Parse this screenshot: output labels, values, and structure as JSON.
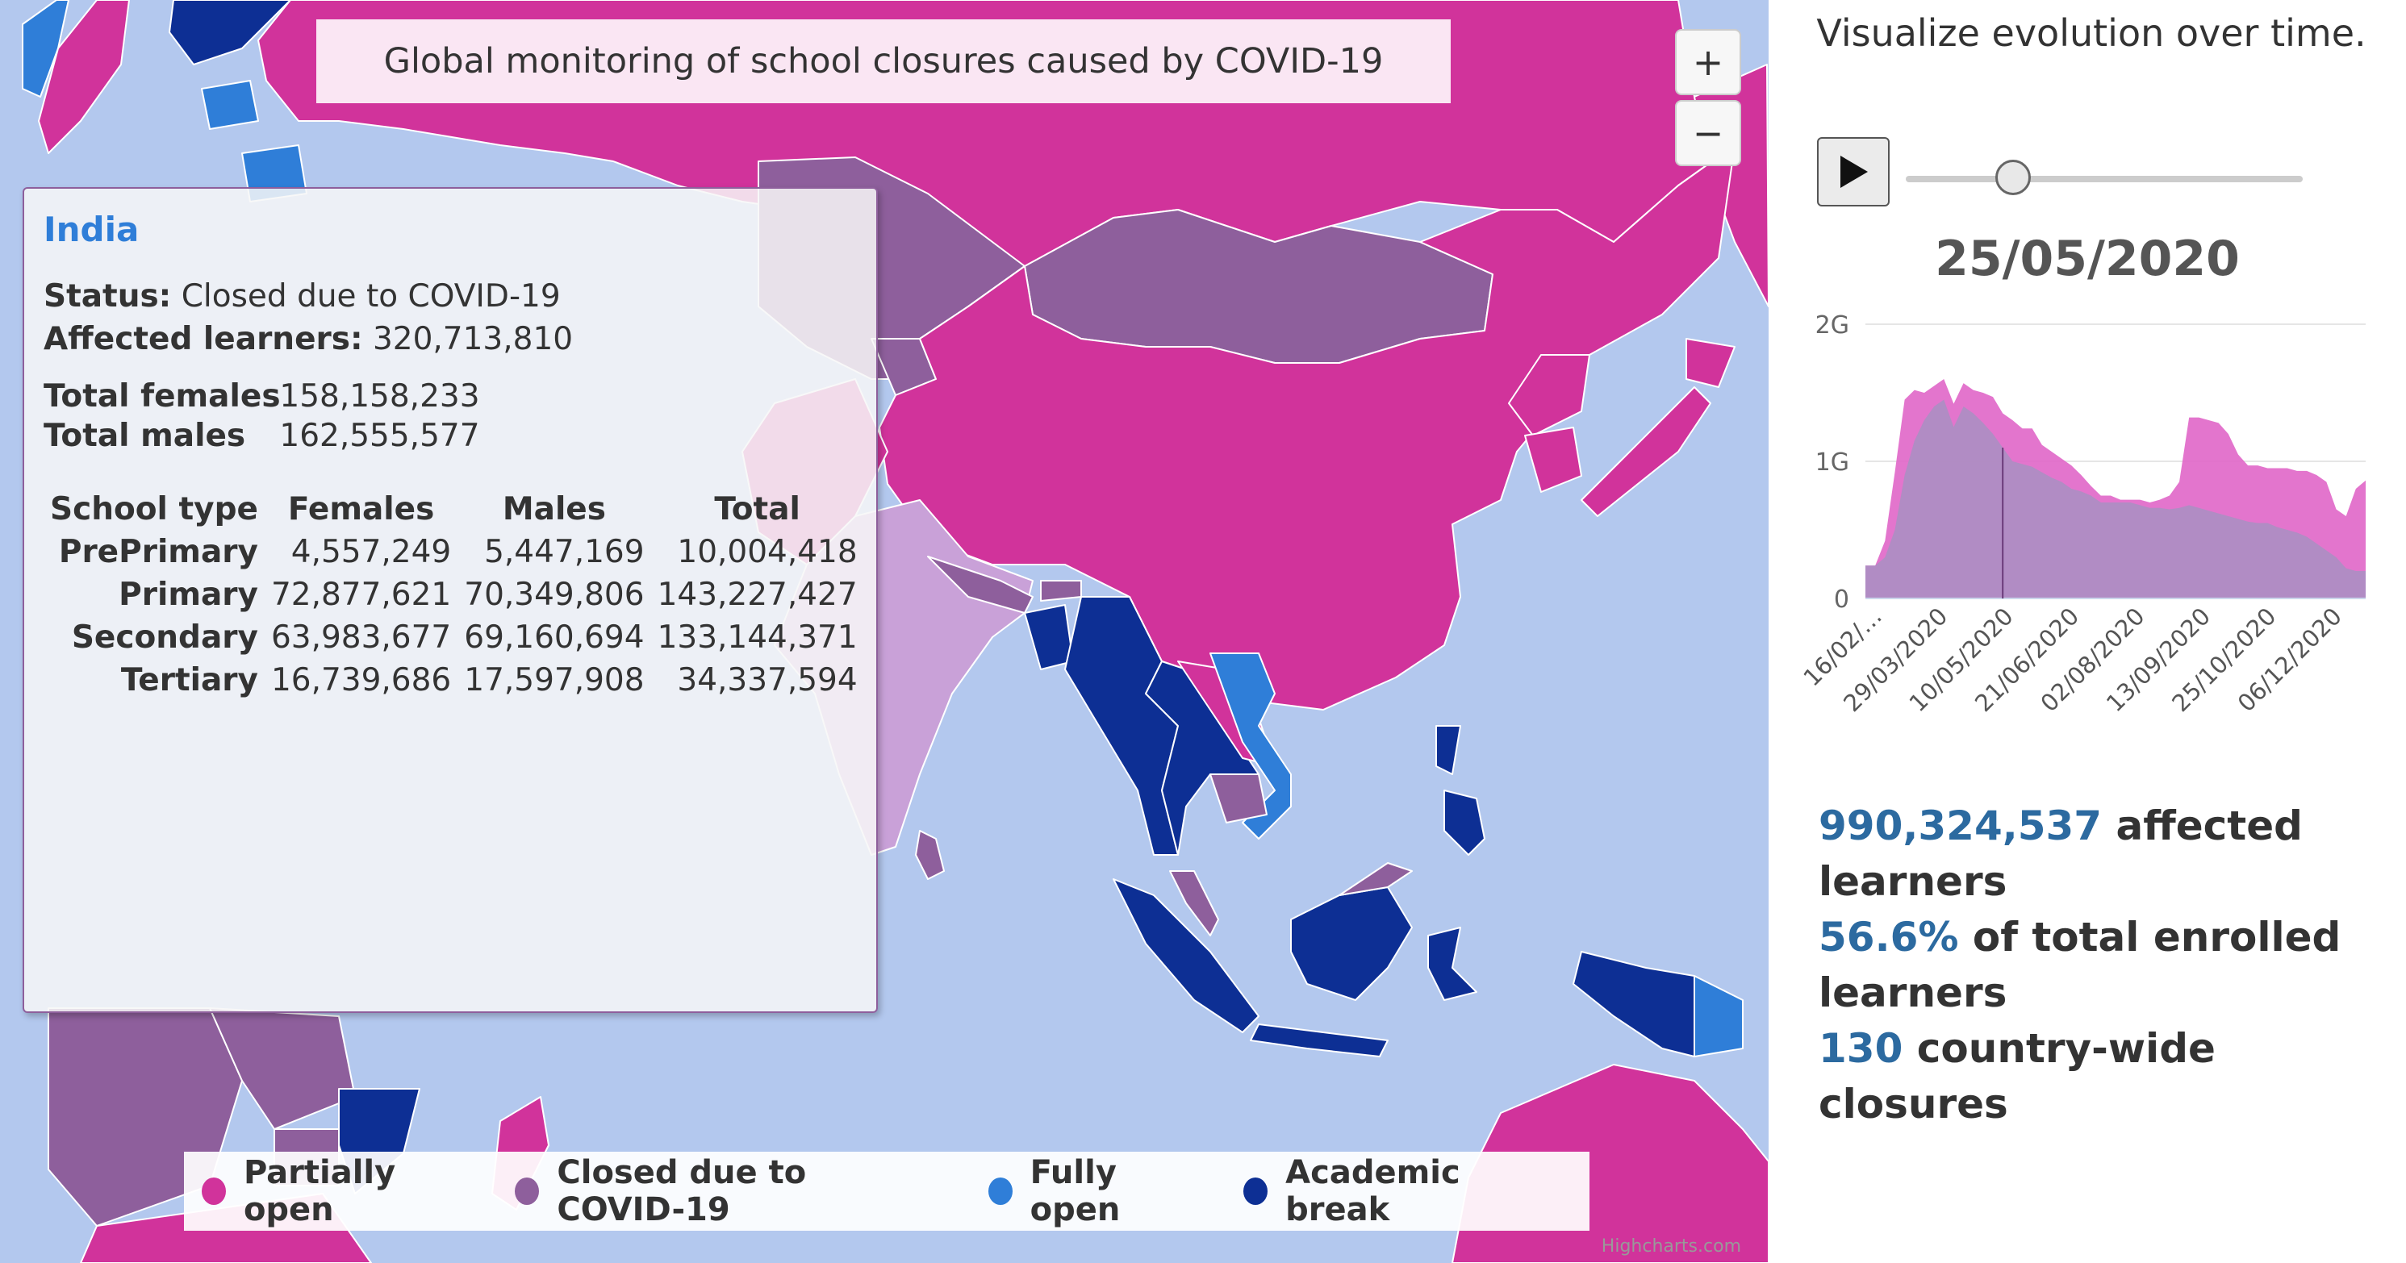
{
  "map": {
    "title": "Global monitoring of school closures caused by COVID-19",
    "zoom_in_label": "+",
    "zoom_out_label": "−",
    "credit": "Highcharts.com",
    "colors": {
      "ocean": "#b3c8ee",
      "partially_open": "#d1339b",
      "closed": "#8e5f9c",
      "fully_open": "#2f7ed8",
      "academic_break": "#0d2f94",
      "no_data": "#ffffff"
    }
  },
  "tooltip": {
    "country": "India",
    "status_label": "Status:",
    "status_value": "Closed due to COVID-19",
    "affected_label": "Affected learners:",
    "affected_value": "320,713,810",
    "females_label": "Total females",
    "females_value": "158,158,233",
    "males_label": "Total males",
    "males_value": "162,555,577",
    "table_headers": [
      "School type",
      "Females",
      "Males",
      "Total"
    ],
    "table_rows": [
      [
        "PrePrimary",
        "4,557,249",
        "5,447,169",
        "10,004,418"
      ],
      [
        "Primary",
        "72,877,621",
        "70,349,806",
        "143,227,427"
      ],
      [
        "Secondary",
        "63,983,677",
        "69,160,694",
        "133,144,371"
      ],
      [
        "Tertiary",
        "16,739,686",
        "17,597,908",
        "34,337,594"
      ]
    ]
  },
  "legend": {
    "items": [
      {
        "label": "Partially open",
        "color": "#d1339b"
      },
      {
        "label": "Closed due to COVID-19",
        "color": "#8e5f9c"
      },
      {
        "label": "Fully open",
        "color": "#2f7ed8"
      },
      {
        "label": "Academic break",
        "color": "#0d2f94"
      }
    ]
  },
  "side": {
    "title": "Visualize evolution over time.",
    "play_icon": "play-icon",
    "slider_position": 0.27,
    "current_date": "25/05/2020",
    "stats": {
      "learners_value": "990,324,537",
      "learners_text": " affected learners",
      "pct_value": "56.6%",
      "pct_text": " of total enrolled learners",
      "closures_value": "130",
      "closures_text": " country-wide closures"
    }
  },
  "chart_data": {
    "type": "area",
    "x_tick_labels": [
      "16/02/…",
      "29/03/2020",
      "10/05/2020",
      "21/06/2020",
      "02/08/2020",
      "13/09/2020",
      "25/10/2020",
      "06/12/2020"
    ],
    "y_tick_labels": [
      "0",
      "1G",
      "2G"
    ],
    "ylim": [
      0,
      2000000000
    ],
    "grid": true,
    "current_marker": "25/05/2020",
    "series": [
      {
        "color": "#e066c8",
        "values": [
          0.24,
          0.24,
          0.42,
          0.92,
          1.45,
          1.52,
          1.5,
          1.55,
          1.6,
          1.42,
          1.57,
          1.52,
          1.5,
          1.47,
          1.35,
          1.3,
          1.24,
          1.24,
          1.12,
          1.07,
          1.02,
          0.97,
          0.9,
          0.82,
          0.75,
          0.75,
          0.72,
          0.72,
          0.72,
          0.7,
          0.72,
          0.75,
          0.85,
          1.32,
          1.32,
          1.3,
          1.28,
          1.2,
          1.05,
          0.97,
          0.97,
          0.95,
          0.95,
          0.95,
          0.93,
          0.93,
          0.9,
          0.85,
          0.65,
          0.6,
          0.8,
          0.86
        ]
      },
      {
        "color": "#a890c2",
        "values": [
          0.24,
          0.24,
          0.3,
          0.5,
          0.9,
          1.15,
          1.3,
          1.4,
          1.45,
          1.25,
          1.4,
          1.35,
          1.28,
          1.2,
          1.1,
          1.0,
          0.98,
          0.96,
          0.92,
          0.88,
          0.85,
          0.8,
          0.78,
          0.75,
          0.7,
          0.7,
          0.7,
          0.7,
          0.68,
          0.66,
          0.66,
          0.65,
          0.66,
          0.68,
          0.66,
          0.64,
          0.62,
          0.6,
          0.58,
          0.56,
          0.55,
          0.55,
          0.52,
          0.5,
          0.48,
          0.45,
          0.4,
          0.35,
          0.3,
          0.22,
          0.2,
          0.2
        ]
      }
    ]
  }
}
